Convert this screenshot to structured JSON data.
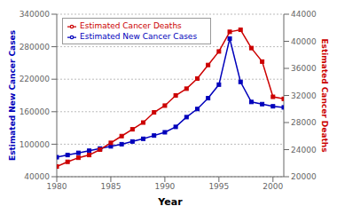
{
  "chart_data": {
    "type": "line",
    "xlabel": "Year",
    "ylabel": "Estimated New Cancer Cases",
    "y2label": "Estimated Cancer Deaths",
    "x": [
      1980,
      1981,
      1982,
      1983,
      1984,
      1985,
      1986,
      1987,
      1988,
      1989,
      1990,
      1991,
      1992,
      1993,
      1994,
      1995,
      1996,
      1997,
      1998,
      1999,
      2000,
      2001
    ],
    "series": [
      {
        "name": "Estimated New Cancer Cases",
        "color": "#0000bb",
        "marker": "square",
        "values": [
          76000,
          80000,
          84000,
          88000,
          92000,
          96000,
          100000,
          105000,
          110000,
          116000,
          122000,
          132000,
          150000,
          165000,
          185000,
          210000,
          295000,
          215000,
          178000,
          174000,
          170000,
          168000
        ]
      },
      {
        "name": "Estimated Cancer Deaths",
        "color": "#cc0000",
        "marker": "square",
        "axis": "y2",
        "values": [
          21500,
          22200,
          22800,
          23200,
          24000,
          25000,
          26000,
          27000,
          28000,
          29500,
          30500,
          32000,
          33000,
          34500,
          36500,
          38500,
          41400,
          41700,
          39000,
          37000,
          31800,
          31500
        ]
      }
    ],
    "xlim": [
      1980,
      2001
    ],
    "xticks": [
      1980,
      1985,
      1990,
      1995,
      2000
    ],
    "ylim": [
      40000,
      340000
    ],
    "yticks": [
      40000,
      100000,
      160000,
      220000,
      280000,
      340000
    ],
    "y2lim": [
      20000,
      44000
    ],
    "y2ticks": [
      20000,
      24000,
      28000,
      32000,
      36000,
      40000,
      44000
    ],
    "grid": true,
    "legend": "upper left"
  }
}
